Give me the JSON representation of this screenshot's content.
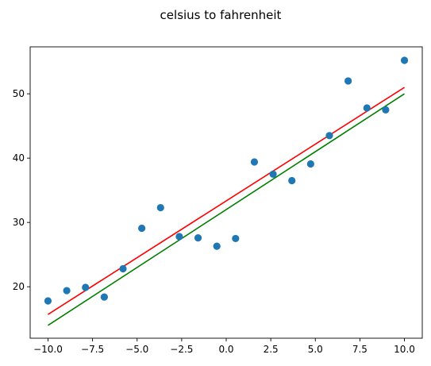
{
  "chart_data": {
    "type": "scatter",
    "title": "celsius to fahrenheit",
    "xlim": [
      -11.0,
      11.0
    ],
    "ylim": [
      12.0,
      57.3
    ],
    "x_ticks": [
      -10.0,
      -7.5,
      -5.0,
      -2.5,
      0.0,
      2.5,
      5.0,
      7.5,
      10.0
    ],
    "x_tick_labels": [
      "−10.0",
      "−7.5",
      "−5.0",
      "−2.5",
      "0.0",
      "2.5",
      "5.0",
      "7.5",
      "10.0"
    ],
    "y_ticks": [
      20,
      30,
      40,
      50
    ],
    "y_tick_labels": [
      "20",
      "30",
      "40",
      "50"
    ],
    "grid": false,
    "points": {
      "color": "#1f77b4",
      "x": [
        -10.0,
        -8.947,
        -7.895,
        -6.842,
        -5.789,
        -4.737,
        -3.684,
        -2.632,
        -1.579,
        -0.526,
        0.526,
        1.579,
        2.632,
        3.684,
        4.737,
        5.789,
        6.842,
        7.895,
        8.947,
        10.0
      ],
      "y": [
        17.8,
        19.4,
        19.9,
        18.4,
        22.8,
        29.1,
        32.3,
        27.8,
        27.6,
        26.3,
        27.5,
        39.4,
        37.5,
        36.5,
        39.1,
        43.5,
        52.0,
        47.8,
        47.5,
        55.2
      ]
    },
    "lines": [
      {
        "color": "#ff0000",
        "x": [
          -10.0,
          10.0
        ],
        "y": [
          15.7,
          51.0
        ]
      },
      {
        "color": "#008000",
        "x": [
          -10.0,
          10.0
        ],
        "y": [
          14.0,
          50.0
        ]
      }
    ]
  }
}
